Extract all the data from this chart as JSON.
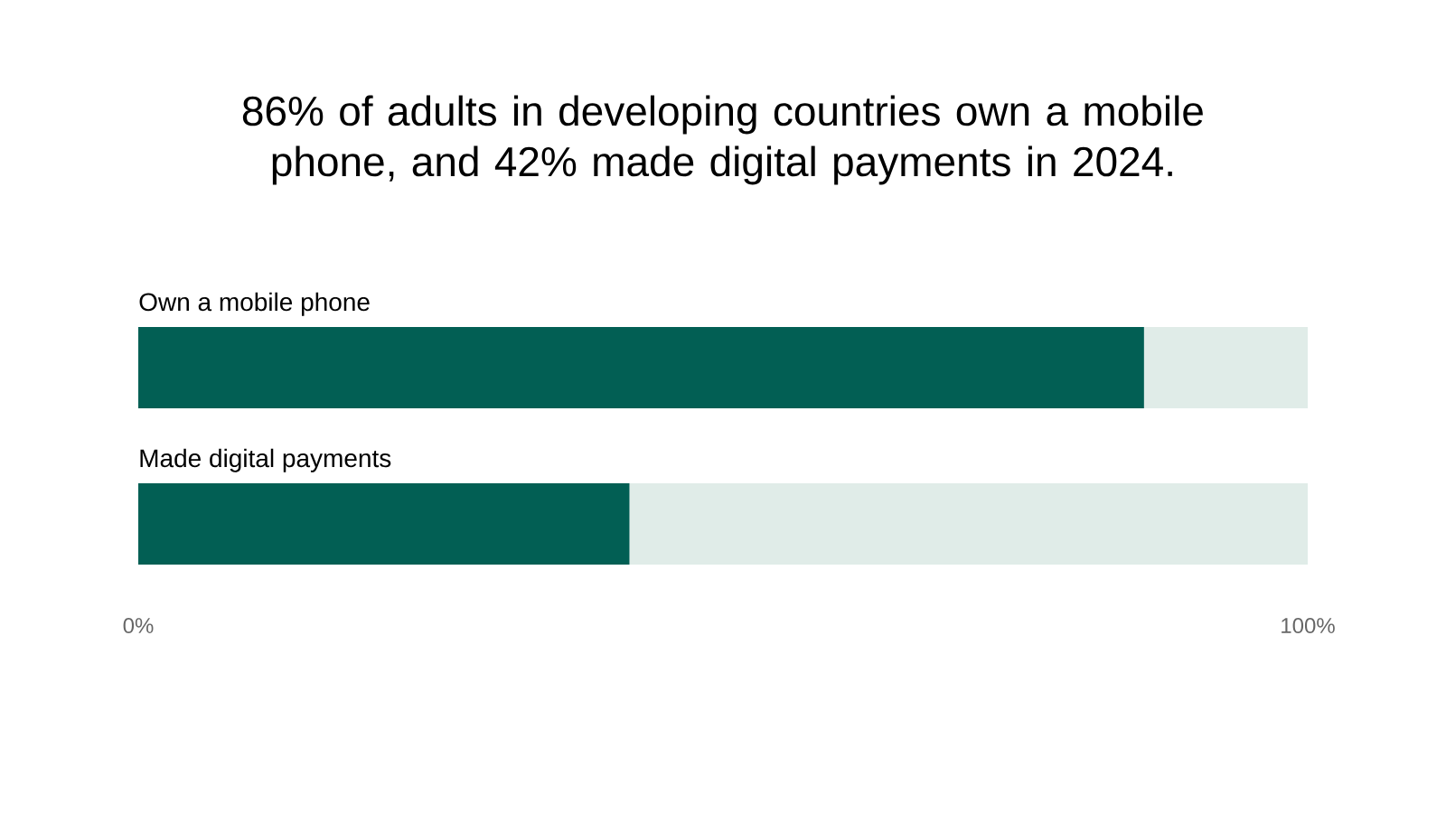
{
  "chart_data": {
    "type": "bar",
    "orientation": "horizontal",
    "stacked": true,
    "title": "86% of adults in developing countries own a mobile phone, and 42% made digital payments in 2024.",
    "categories": [
      "Own a mobile phone",
      "Made digital payments"
    ],
    "series": [
      {
        "color": "#025f54",
        "values": [
          86,
          42
        ]
      },
      {
        "color": "#e0ece8",
        "values": [
          14,
          58
        ]
      }
    ],
    "xlim": [
      0,
      100
    ],
    "xticks": [
      {
        "value": 0,
        "label": "0%"
      },
      {
        "value": 100,
        "label": "100%"
      }
    ]
  }
}
